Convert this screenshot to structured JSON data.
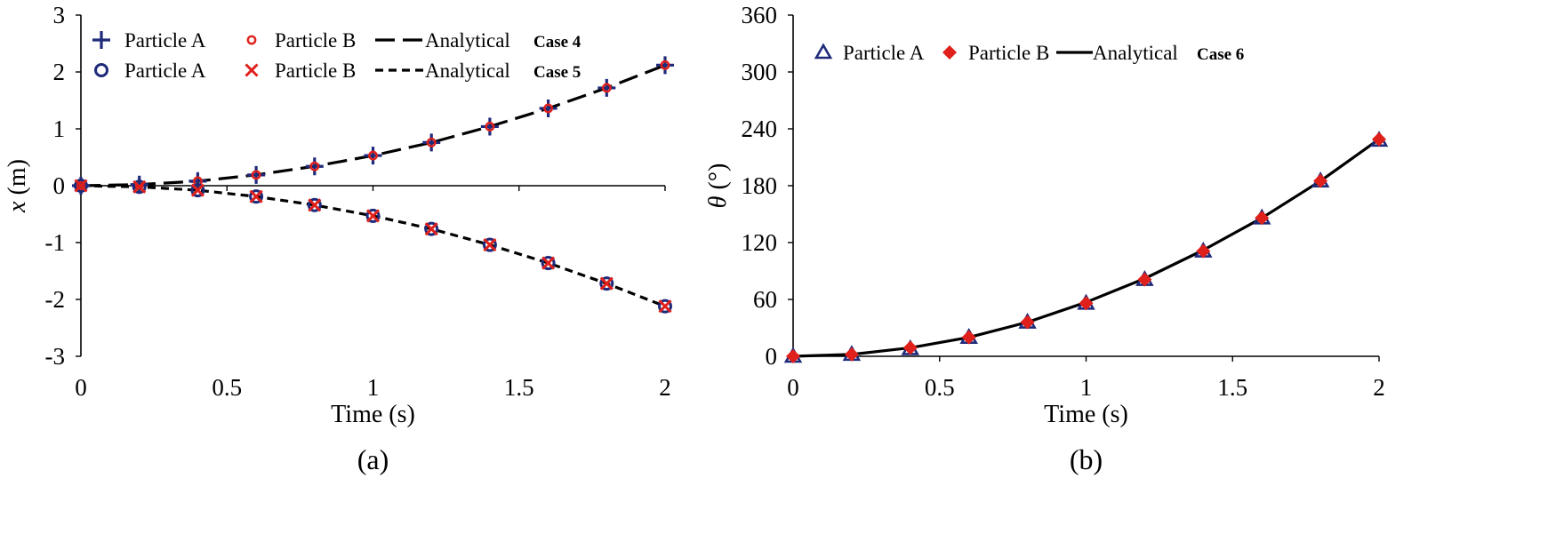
{
  "chart_data": [
    {
      "type": "line",
      "panel_label": "(a)",
      "xlabel": "Time (s)",
      "ylabel_var": "x",
      "ylabel_unit": " (m)",
      "xlim": [
        0,
        2
      ],
      "ylim": [
        -3,
        3
      ],
      "xticks": [
        "0",
        "0.5",
        "1",
        "1.5",
        "2"
      ],
      "yticks": [
        "-3",
        "-2",
        "-1",
        "0",
        "1",
        "2",
        "3"
      ],
      "cases": [
        {
          "case_label": "Case 4",
          "series": [
            {
              "name": "Particle A",
              "marker": "plus",
              "color": "#1f2a7a",
              "x": [
                0,
                0.2,
                0.4,
                0.6,
                0.8,
                1.0,
                1.2,
                1.4,
                1.6,
                1.8,
                2.0
              ],
              "y": [
                0,
                0.02,
                0.08,
                0.19,
                0.34,
                0.53,
                0.76,
                1.04,
                1.36,
                1.72,
                2.12
              ]
            },
            {
              "name": "Particle B",
              "marker": "small-circle",
              "color": "#e0201b",
              "x": [
                0,
                0.2,
                0.4,
                0.6,
                0.8,
                1.0,
                1.2,
                1.4,
                1.6,
                1.8,
                2.0
              ],
              "y": [
                0,
                0.02,
                0.08,
                0.19,
                0.34,
                0.53,
                0.76,
                1.04,
                1.36,
                1.72,
                2.12
              ]
            },
            {
              "name": "Analytical",
              "line": "long-dash",
              "color": "#000000",
              "x": [
                0,
                0.2,
                0.4,
                0.6,
                0.8,
                1.0,
                1.2,
                1.4,
                1.6,
                1.8,
                2.0
              ],
              "y": [
                0,
                0.02,
                0.08,
                0.19,
                0.34,
                0.53,
                0.76,
                1.04,
                1.36,
                1.72,
                2.12
              ]
            }
          ]
        },
        {
          "case_label": "Case 5",
          "series": [
            {
              "name": "Particle A",
              "marker": "circle",
              "color": "#1f2a7a",
              "x": [
                0,
                0.2,
                0.4,
                0.6,
                0.8,
                1.0,
                1.2,
                1.4,
                1.6,
                1.8,
                2.0
              ],
              "y": [
                0,
                -0.02,
                -0.08,
                -0.19,
                -0.34,
                -0.53,
                -0.76,
                -1.04,
                -1.36,
                -1.72,
                -2.12
              ]
            },
            {
              "name": "Particle B",
              "marker": "cross",
              "color": "#e0201b",
              "x": [
                0,
                0.2,
                0.4,
                0.6,
                0.8,
                1.0,
                1.2,
                1.4,
                1.6,
                1.8,
                2.0
              ],
              "y": [
                0,
                -0.02,
                -0.08,
                -0.19,
                -0.34,
                -0.53,
                -0.76,
                -1.04,
                -1.36,
                -1.72,
                -2.12
              ]
            },
            {
              "name": "Analytical",
              "line": "short-dash",
              "color": "#000000",
              "x": [
                0,
                0.2,
                0.4,
                0.6,
                0.8,
                1.0,
                1.2,
                1.4,
                1.6,
                1.8,
                2.0
              ],
              "y": [
                0,
                -0.02,
                -0.08,
                -0.19,
                -0.34,
                -0.53,
                -0.76,
                -1.04,
                -1.36,
                -1.72,
                -2.12
              ]
            }
          ]
        }
      ]
    },
    {
      "type": "line",
      "panel_label": "(b)",
      "xlabel": "Time (s)",
      "ylabel_var": "θ",
      "ylabel_unit": " (°)",
      "xlim": [
        0,
        2
      ],
      "ylim": [
        0,
        360
      ],
      "xticks": [
        "0",
        "0.5",
        "1",
        "1.5",
        "2"
      ],
      "yticks": [
        "0",
        "60",
        "120",
        "180",
        "240",
        "300",
        "360"
      ],
      "cases": [
        {
          "case_label": "Case 6",
          "series": [
            {
              "name": "Particle A",
              "marker": "triangle",
              "color": "#1f2a7a",
              "x": [
                0,
                0.2,
                0.4,
                0.6,
                0.8,
                1.0,
                1.2,
                1.4,
                1.6,
                1.8,
                2.0
              ],
              "y": [
                0,
                2,
                8,
                20,
                36,
                56,
                81,
                111,
                146,
                185,
                228
              ]
            },
            {
              "name": "Particle B",
              "marker": "diamond",
              "color": "#e0201b",
              "x": [
                0,
                0.2,
                0.4,
                0.6,
                0.8,
                1.0,
                1.2,
                1.4,
                1.6,
                1.8,
                2.0
              ],
              "y": [
                0,
                2,
                9,
                20,
                36,
                56,
                81,
                111,
                146,
                185,
                229
              ]
            },
            {
              "name": "Analytical",
              "line": "solid",
              "color": "#000000",
              "x": [
                0,
                0.2,
                0.4,
                0.6,
                0.8,
                1.0,
                1.2,
                1.4,
                1.6,
                1.8,
                2.0
              ],
              "y": [
                0,
                2,
                9,
                20,
                36,
                57,
                82,
                112,
                146,
                185,
                229
              ]
            }
          ]
        }
      ]
    }
  ]
}
